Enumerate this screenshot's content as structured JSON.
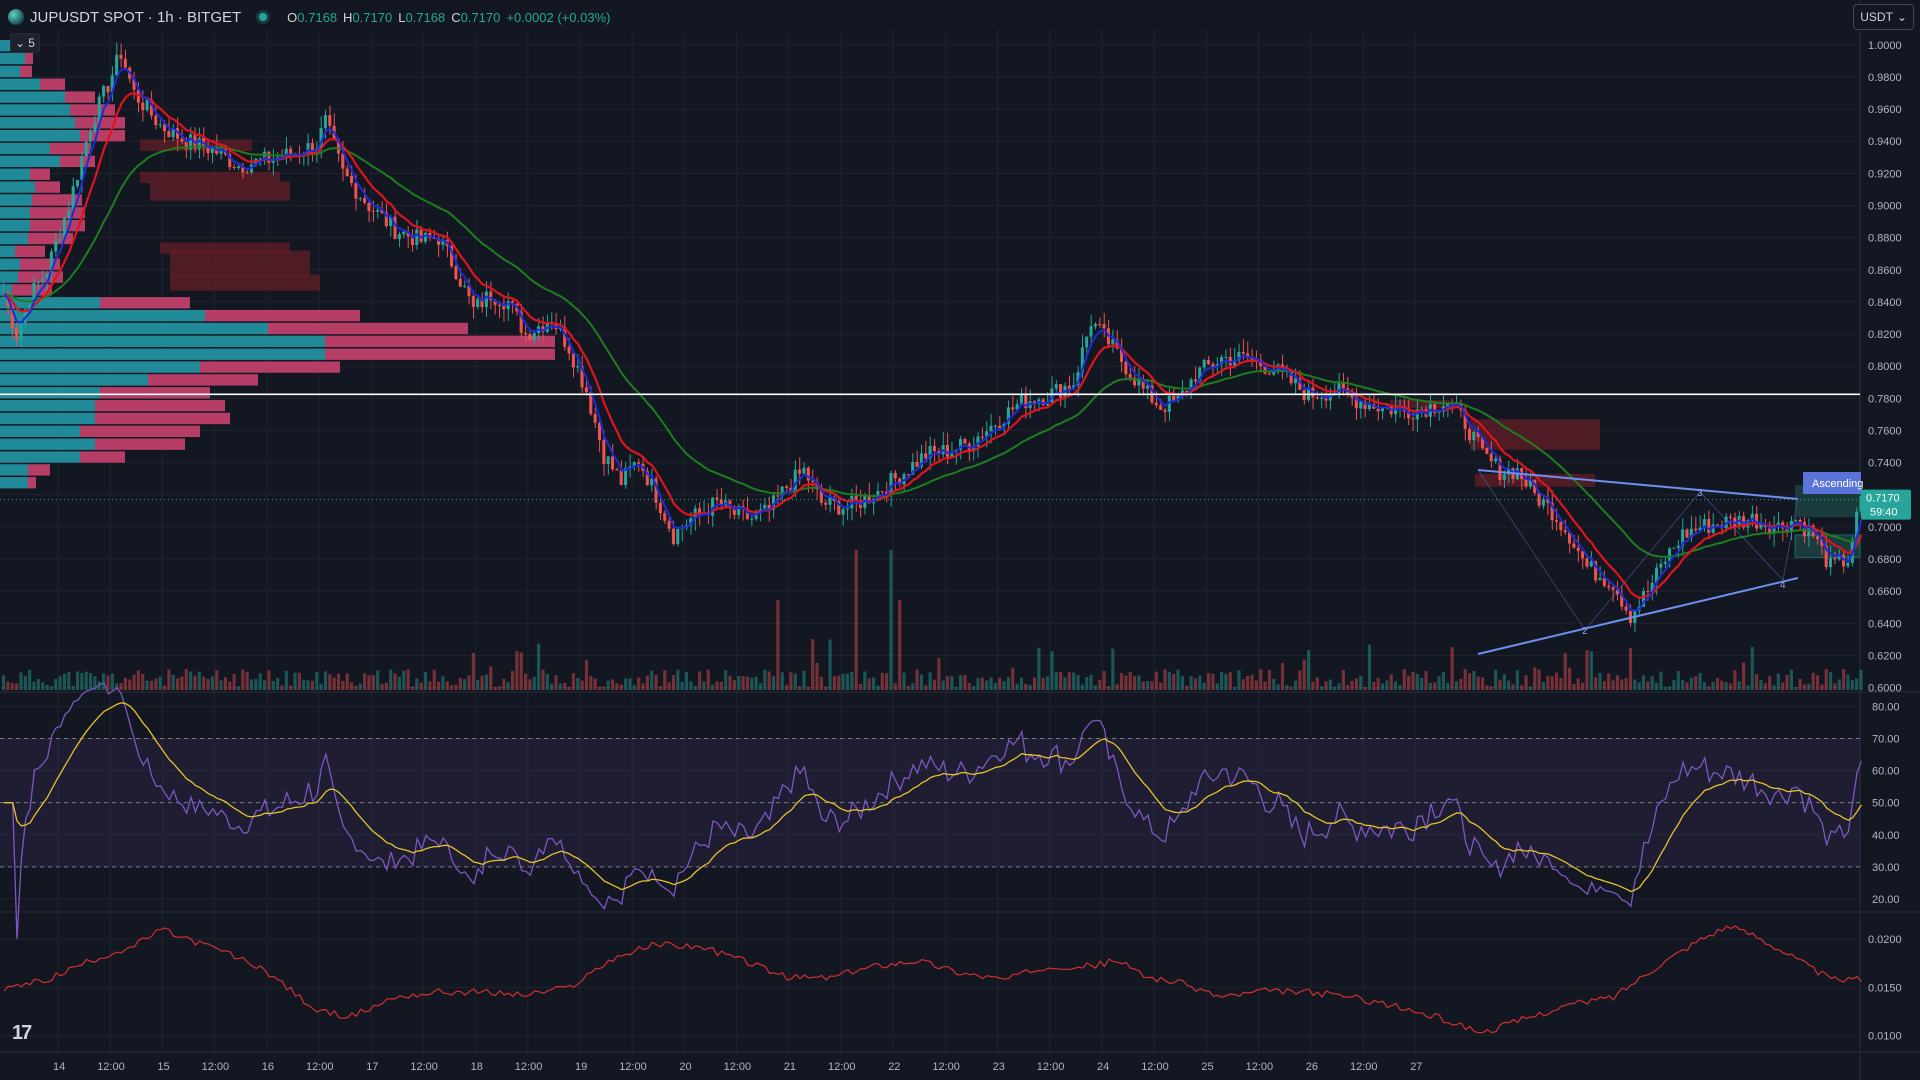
{
  "header": {
    "symbol": "JUPUSDT SPOT",
    "interval": "1h",
    "exchange": "BITGET",
    "symbol_line": "JUPUSDT SPOT · 1h · BITGET",
    "ohlc": [
      {
        "key": "O",
        "value": "0.7168"
      },
      {
        "key": "H",
        "value": "0.7170"
      },
      {
        "key": "L",
        "value": "0.7168"
      },
      {
        "key": "C",
        "value": "0.7170"
      }
    ],
    "change": "+0.0002 (+0.03%)"
  },
  "collapse_label": "5",
  "currency_selector": "USDT",
  "colors": {
    "background": "#131722",
    "up": "#26a69a",
    "down": "#ef5350",
    "ema_fast": "#1e2bd8",
    "ema_mid": "#e0141e",
    "ema_slow": "#1e7d1e",
    "rsi": "#7e57c2",
    "rsi_ma": "#e6c229",
    "third": "#d32f2f"
  },
  "chart_data": [
    {
      "type": "candlestick",
      "pane": "price",
      "y_ticks": [
        "1.0000",
        "0.9800",
        "0.9600",
        "0.9400",
        "0.9200",
        "0.9000",
        "0.8800",
        "0.8600",
        "0.8400",
        "0.8200",
        "0.8000",
        "0.7800",
        "0.7600",
        "0.7400",
        "0.7200",
        "0.7000",
        "0.6800",
        "0.6600",
        "0.6400",
        "0.6200",
        "0.6000"
      ],
      "ylim": [
        0.5985,
        1.003
      ],
      "x_ticks": [
        "14",
        "12:00",
        "15",
        "12:00",
        "16",
        "12:00",
        "17",
        "12:00",
        "18",
        "12:00",
        "19",
        "12:00",
        "20",
        "12:00",
        "21",
        "12:00",
        "22",
        "12:00",
        "23",
        "12:00",
        "24",
        "12:00",
        "25",
        "12:00",
        "26",
        "12:00",
        "27"
      ],
      "last_price": "0.7170",
      "countdown": "59:40",
      "horizontal_line": 0.7825,
      "pattern_label": "Ascending",
      "pattern_points": [
        "2",
        "3",
        "4"
      ],
      "price_path": [
        [
          0,
          0.845
        ],
        [
          3,
          0.82
        ],
        [
          6,
          0.843
        ],
        [
          10,
          0.86
        ],
        [
          15,
          0.9
        ],
        [
          20,
          0.95
        ],
        [
          24,
          0.975
        ],
        [
          27,
          0.995
        ],
        [
          30,
          0.97
        ],
        [
          36,
          0.95
        ],
        [
          42,
          0.94
        ],
        [
          48,
          0.935
        ],
        [
          54,
          0.925
        ],
        [
          60,
          0.928
        ],
        [
          66,
          0.932
        ],
        [
          72,
          0.938
        ],
        [
          74,
          0.952
        ],
        [
          78,
          0.92
        ],
        [
          84,
          0.9
        ],
        [
          90,
          0.885
        ],
        [
          96,
          0.878
        ],
        [
          100,
          0.88
        ],
        [
          104,
          0.86
        ],
        [
          108,
          0.835
        ],
        [
          112,
          0.845
        ],
        [
          116,
          0.84
        ],
        [
          120,
          0.82
        ],
        [
          126,
          0.83
        ],
        [
          130,
          0.812
        ],
        [
          134,
          0.785
        ],
        [
          138,
          0.745
        ],
        [
          142,
          0.728
        ],
        [
          146,
          0.742
        ],
        [
          150,
          0.72
        ],
        [
          154,
          0.695
        ],
        [
          158,
          0.705
        ],
        [
          164,
          0.715
        ],
        [
          168,
          0.708
        ],
        [
          172,
          0.705
        ],
        [
          176,
          0.71
        ],
        [
          180,
          0.725
        ],
        [
          184,
          0.735
        ],
        [
          188,
          0.715
        ],
        [
          194,
          0.712
        ],
        [
          200,
          0.72
        ],
        [
          206,
          0.732
        ],
        [
          212,
          0.745
        ],
        [
          218,
          0.748
        ],
        [
          222,
          0.752
        ],
        [
          228,
          0.765
        ],
        [
          234,
          0.778
        ],
        [
          240,
          0.782
        ],
        [
          246,
          0.79
        ],
        [
          250,
          0.828
        ],
        [
          254,
          0.815
        ],
        [
          258,
          0.8
        ],
        [
          262,
          0.785
        ],
        [
          266,
          0.775
        ],
        [
          270,
          0.778
        ],
        [
          274,
          0.795
        ],
        [
          280,
          0.805
        ],
        [
          286,
          0.805
        ],
        [
          292,
          0.798
        ],
        [
          296,
          0.79
        ],
        [
          300,
          0.782
        ],
        [
          306,
          0.785
        ],
        [
          310,
          0.78
        ],
        [
          316,
          0.775
        ],
        [
          322,
          0.772
        ],
        [
          328,
          0.775
        ],
        [
          332,
          0.778
        ],
        [
          336,
          0.765
        ],
        [
          340,
          0.745
        ],
        [
          344,
          0.735
        ],
        [
          348,
          0.735
        ],
        [
          352,
          0.72
        ],
        [
          356,
          0.71
        ],
        [
          360,
          0.695
        ],
        [
          364,
          0.675
        ],
        [
          370,
          0.665
        ],
        [
          374,
          0.645
        ],
        [
          378,
          0.66
        ],
        [
          382,
          0.68
        ],
        [
          386,
          0.695
        ],
        [
          390,
          0.7
        ],
        [
          396,
          0.703
        ],
        [
          402,
          0.705
        ],
        [
          408,
          0.7
        ],
        [
          412,
          0.705
        ],
        [
          416,
          0.695
        ],
        [
          420,
          0.675
        ],
        [
          424,
          0.68
        ],
        [
          427,
          0.717
        ]
      ],
      "overlays": [
        "EMA fast",
        "EMA mid",
        "EMA slow",
        "volume profile",
        "volume",
        "ascending triangle"
      ]
    },
    {
      "type": "line",
      "pane": "rsi",
      "y_ticks": [
        "80.00",
        "70.00",
        "60.00",
        "50.00",
        "40.00",
        "30.00",
        "20.00"
      ],
      "ylim": [
        15,
        82
      ],
      "band": [
        30,
        70
      ],
      "midline": 50
    },
    {
      "type": "line",
      "pane": "third",
      "y_ticks": [
        "0.0200",
        "0.0150",
        "0.0100"
      ],
      "ylim": [
        0.0085,
        0.0225
      ],
      "path": [
        [
          0,
          0.0148
        ],
        [
          10,
          0.0158
        ],
        [
          20,
          0.0178
        ],
        [
          30,
          0.0193
        ],
        [
          36,
          0.021
        ],
        [
          42,
          0.02
        ],
        [
          50,
          0.0188
        ],
        [
          60,
          0.0168
        ],
        [
          72,
          0.0125
        ],
        [
          80,
          0.012
        ],
        [
          90,
          0.014
        ],
        [
          100,
          0.0145
        ],
        [
          110,
          0.0145
        ],
        [
          120,
          0.0142
        ],
        [
          130,
          0.015
        ],
        [
          140,
          0.018
        ],
        [
          150,
          0.0195
        ],
        [
          160,
          0.0192
        ],
        [
          170,
          0.0178
        ],
        [
          180,
          0.016
        ],
        [
          190,
          0.016
        ],
        [
          200,
          0.0172
        ],
        [
          210,
          0.0178
        ],
        [
          220,
          0.0165
        ],
        [
          230,
          0.0158
        ],
        [
          240,
          0.0172
        ],
        [
          250,
          0.0172
        ],
        [
          256,
          0.0178
        ],
        [
          262,
          0.0162
        ],
        [
          270,
          0.0155
        ],
        [
          280,
          0.014
        ],
        [
          290,
          0.0146
        ],
        [
          300,
          0.0145
        ],
        [
          310,
          0.014
        ],
        [
          320,
          0.013
        ],
        [
          330,
          0.0118
        ],
        [
          340,
          0.0103
        ],
        [
          350,
          0.0118
        ],
        [
          360,
          0.0132
        ],
        [
          370,
          0.014
        ],
        [
          380,
          0.0172
        ],
        [
          390,
          0.02
        ],
        [
          396,
          0.0213
        ],
        [
          402,
          0.0205
        ],
        [
          410,
          0.0185
        ],
        [
          420,
          0.0158
        ],
        [
          426,
          0.0158
        ]
      ]
    }
  ]
}
